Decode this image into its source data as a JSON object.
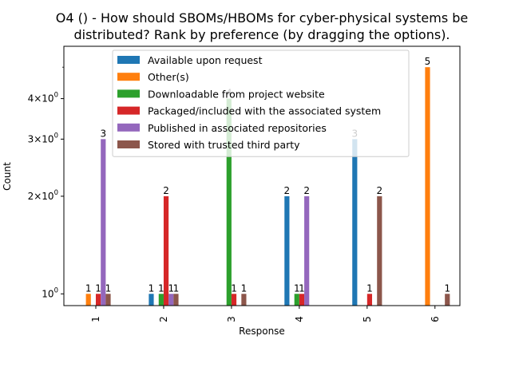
{
  "chart_data": {
    "type": "bar",
    "title_lines": [
      "O4 () - How should SBOMs/HBOMs for cyber-physical systems be",
      "distributed? Rank by preference (by dragging the options)."
    ],
    "xlabel": "Response",
    "ylabel": "Count",
    "yscale": "log",
    "ylim": [
      0.92,
      5.8
    ],
    "yticks": [
      {
        "value": 1,
        "label": "10^0"
      },
      {
        "value": 2,
        "label": "2×10^0"
      },
      {
        "value": 3,
        "label": "3×10^0"
      },
      {
        "value": 4,
        "label": "4×10^0"
      }
    ],
    "categories": [
      "1",
      "2",
      "3",
      "4",
      "5",
      "6"
    ],
    "series": [
      {
        "name": "Available upon request",
        "color": "#1f77b4",
        "values": [
          null,
          1,
          null,
          2,
          3,
          null
        ]
      },
      {
        "name": "Other(s)",
        "color": "#ff7f0e",
        "values": [
          1,
          null,
          null,
          null,
          null,
          5
        ]
      },
      {
        "name": "Downloadable from project website",
        "color": "#2ca02c",
        "values": [
          null,
          1,
          4,
          1,
          null,
          null
        ]
      },
      {
        "name": "Packaged/included with the associated system",
        "color": "#d62728",
        "values": [
          1,
          2,
          1,
          1,
          1,
          null
        ]
      },
      {
        "name": "Published in associated repositories",
        "color": "#9467bd",
        "values": [
          3,
          1,
          null,
          2,
          null,
          null
        ]
      },
      {
        "name": "Stored with trusted third party",
        "color": "#8c564b",
        "values": [
          1,
          1,
          1,
          null,
          2,
          1
        ]
      }
    ],
    "legend_position": "top-center",
    "grid": false
  }
}
